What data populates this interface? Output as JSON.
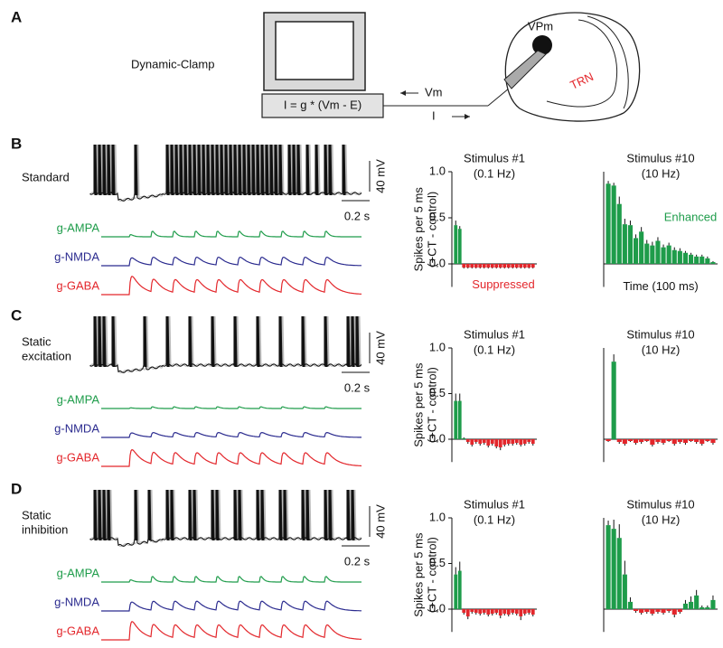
{
  "figure": {
    "panel_a": {
      "letter": "A",
      "label": "Dynamic-Clamp",
      "equation": "I = g * (Vm - E)",
      "vm": "Vm",
      "current": "I",
      "nucleus": "VPm",
      "reticular": "TRN"
    },
    "rows": [
      {
        "letter": "B",
        "condition": [
          "Standard"
        ],
        "scale_v": "40 mV",
        "scale_t": "0.2 s",
        "conductances": [
          "g-AMPA",
          "g-NMDA",
          "g-GABA"
        ]
      },
      {
        "letter": "C",
        "condition": [
          "Static",
          "excitation"
        ],
        "scale_v": "40 mV",
        "scale_t": "0.2 s",
        "conductances": [
          "g-AMPA",
          "g-NMDA",
          "g-GABA"
        ]
      },
      {
        "letter": "D",
        "condition": [
          "Static",
          "inhibition"
        ],
        "scale_v": "40 mV",
        "scale_t": "0.2 s",
        "conductances": [
          "g-AMPA",
          "g-NMDA",
          "g-GABA"
        ]
      }
    ]
  },
  "chart_data": [
    {
      "type": "bar",
      "title": "Stimulus #1",
      "subtitle": "(0.1 Hz)",
      "y_label": [
        "Spikes per 5 ms",
        "(+CT - control)"
      ],
      "annotation": "Suppressed",
      "annotation_color": "#e3262b",
      "values": [
        0.42,
        0.38,
        -0.04,
        -0.04,
        -0.04,
        -0.04,
        -0.04,
        -0.04,
        -0.04,
        -0.04,
        -0.04,
        -0.04,
        -0.04,
        -0.04,
        -0.04,
        -0.04,
        -0.04,
        -0.04,
        -0.04,
        -0.04
      ],
      "errors": [
        0.05,
        0.03,
        0.01,
        0.01,
        0.01,
        0.01,
        0.01,
        0.01,
        0.01,
        0.01,
        0.01,
        0.01,
        0.01,
        0.01,
        0.01,
        0.01,
        0.01,
        0.01,
        0.01,
        0.01
      ],
      "colors": {
        "positive": "#1e9c4a",
        "negative": "#e3262b"
      },
      "ylim": [
        -0.25,
        1.0
      ],
      "yticks": [
        {
          "value": 0,
          "label": "0.0"
        },
        {
          "value": 0.5,
          "label": "0.5"
        },
        {
          "value": 1,
          "label": "1.0"
        }
      ]
    },
    {
      "type": "bar",
      "title": "Stimulus #10",
      "subtitle": "(10 Hz)",
      "annotation": "Enhanced",
      "annotation_color": "#1e9c4a",
      "x_label": "Time (100 ms)",
      "values": [
        0.87,
        0.85,
        0.65,
        0.43,
        0.42,
        0.28,
        0.35,
        0.22,
        0.2,
        0.25,
        0.18,
        0.2,
        0.15,
        0.14,
        0.12,
        0.1,
        0.08,
        0.08,
        0.06,
        0.02
      ],
      "errors": [
        0.03,
        0.03,
        0.08,
        0.06,
        0.05,
        0.04,
        0.05,
        0.04,
        0.04,
        0.04,
        0.03,
        0.03,
        0.03,
        0.03,
        0.02,
        0.02,
        0.02,
        0.02,
        0.02,
        0.01
      ],
      "colors": {
        "positive": "#1e9c4a",
        "negative": "#e3262b"
      },
      "ylim": [
        -0.25,
        1.0
      ]
    },
    {
      "type": "bar",
      "title": "Stimulus #1",
      "subtitle": "(0.1 Hz)",
      "y_label": [
        "Spikes per 5 ms",
        "(+CT - control)"
      ],
      "values": [
        0.42,
        0.42,
        0.01,
        -0.03,
        -0.06,
        -0.03,
        -0.05,
        -0.04,
        -0.07,
        -0.05,
        -0.08,
        -0.09,
        -0.06,
        -0.05,
        -0.05,
        -0.04,
        -0.06,
        -0.05,
        -0.03,
        -0.05
      ],
      "errors": [
        0.08,
        0.08,
        0.01,
        0.02,
        0.02,
        0.02,
        0.02,
        0.02,
        0.02,
        0.02,
        0.02,
        0.03,
        0.02,
        0.02,
        0.02,
        0.02,
        0.02,
        0.02,
        0.02,
        0.02
      ],
      "colors": {
        "positive": "#1e9c4a",
        "negative": "#e3262b"
      },
      "ylim": [
        -0.25,
        1.0
      ],
      "yticks": [
        {
          "value": 0,
          "label": "0.0"
        },
        {
          "value": 0.5,
          "label": "0.5"
        },
        {
          "value": 1,
          "label": "1.0"
        }
      ]
    },
    {
      "type": "bar",
      "title": "Stimulus #10",
      "subtitle": "(10 Hz)",
      "values": [
        -0.02,
        0.85,
        -0.03,
        -0.05,
        -0.02,
        -0.04,
        -0.03,
        -0.02,
        -0.06,
        -0.03,
        -0.04,
        -0.02,
        -0.05,
        -0.03,
        -0.04,
        -0.02,
        -0.03,
        -0.05,
        -0.02,
        -0.04
      ],
      "errors": [
        0.01,
        0.08,
        0.02,
        0.02,
        0.01,
        0.02,
        0.02,
        0.01,
        0.02,
        0.02,
        0.02,
        0.01,
        0.02,
        0.02,
        0.02,
        0.01,
        0.02,
        0.02,
        0.01,
        0.02
      ],
      "colors": {
        "positive": "#1e9c4a",
        "negative": "#e3262b"
      },
      "ylim": [
        -0.25,
        1.0
      ]
    },
    {
      "type": "bar",
      "title": "Stimulus #1",
      "subtitle": "(0.1 Hz)",
      "y_label": [
        "Spikes per 5 ms",
        "(+CT - control)"
      ],
      "values": [
        0.38,
        0.42,
        -0.04,
        -0.08,
        -0.03,
        -0.04,
        -0.05,
        -0.04,
        -0.06,
        -0.05,
        -0.04,
        -0.07,
        -0.05,
        -0.06,
        -0.04,
        -0.05,
        -0.08,
        -0.05,
        -0.04,
        -0.06
      ],
      "errors": [
        0.08,
        0.1,
        0.02,
        0.03,
        0.02,
        0.02,
        0.02,
        0.02,
        0.02,
        0.02,
        0.02,
        0.03,
        0.02,
        0.02,
        0.02,
        0.02,
        0.04,
        0.02,
        0.02,
        0.02
      ],
      "colors": {
        "positive": "#1e9c4a",
        "negative": "#e3262b"
      },
      "ylim": [
        -0.25,
        1.0
      ],
      "yticks": [
        {
          "value": 0,
          "label": "0.0"
        },
        {
          "value": 0.5,
          "label": "0.5"
        },
        {
          "value": 1,
          "label": "1.0"
        }
      ]
    },
    {
      "type": "bar",
      "title": "Stimulus #10",
      "subtitle": "(10 Hz)",
      "values": [
        0.92,
        0.88,
        0.78,
        0.38,
        0.08,
        -0.02,
        -0.04,
        -0.03,
        -0.05,
        -0.03,
        -0.04,
        -0.02,
        -0.06,
        -0.03,
        0.06,
        0.08,
        0.15,
        0.02,
        0.02,
        0.1
      ],
      "errors": [
        0.05,
        0.1,
        0.15,
        0.15,
        0.05,
        0.02,
        0.02,
        0.02,
        0.02,
        0.02,
        0.02,
        0.02,
        0.03,
        0.02,
        0.04,
        0.06,
        0.06,
        0.02,
        0.02,
        0.05
      ],
      "colors": {
        "positive": "#1e9c4a",
        "negative": "#e3262b"
      },
      "ylim": [
        -0.25,
        1.0
      ]
    }
  ]
}
